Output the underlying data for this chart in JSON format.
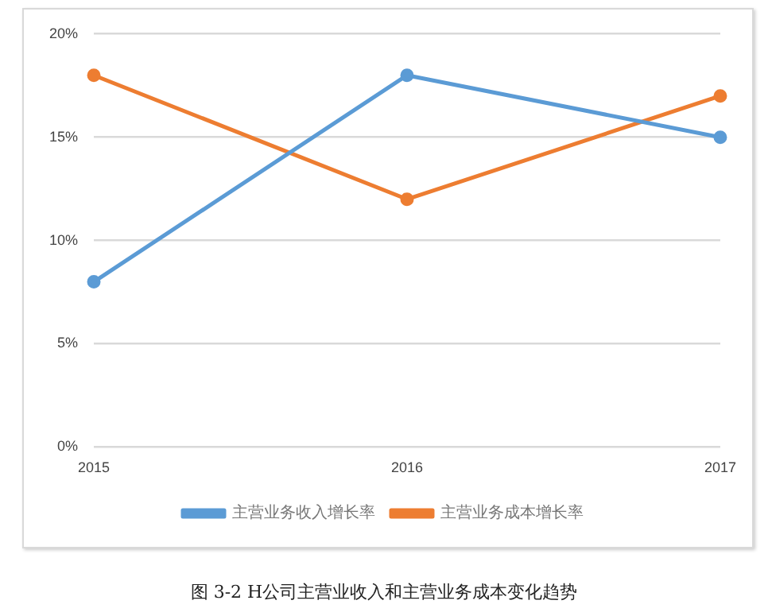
{
  "chart_data": {
    "type": "line",
    "title": "图 3-2 H公司主营业收入和主营业务成本变化趋势",
    "categories": [
      "2015",
      "2016",
      "2017"
    ],
    "series": [
      {
        "name": "主营业务收入增长率",
        "color": "#5b9bd5",
        "values": [
          8,
          18,
          15
        ]
      },
      {
        "name": "主营业务成本增长率",
        "color": "#ed7d31",
        "values": [
          18,
          12,
          17
        ]
      }
    ],
    "ylim": [
      0,
      20
    ],
    "yticks": [
      {
        "value": 0,
        "label": "0%"
      },
      {
        "value": 5,
        "label": "5%"
      },
      {
        "value": 10,
        "label": "10%"
      },
      {
        "value": 15,
        "label": "15%"
      },
      {
        "value": 20,
        "label": "20%"
      }
    ],
    "grid": "y",
    "legend": "bottom",
    "marker": "circle",
    "line_style": "solid"
  }
}
